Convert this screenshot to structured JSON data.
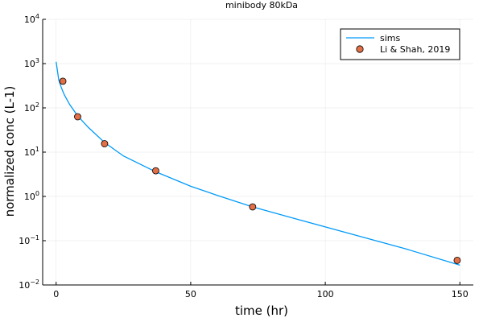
{
  "chart_data": {
    "type": "scatter",
    "title": "minibody 80kDa",
    "xlabel": "time (hr)",
    "ylabel": "normalized conc (L-1)",
    "xlim": [
      -5,
      155
    ],
    "ylim": [
      0.01,
      10000
    ],
    "yscale": "log10",
    "grid": true,
    "legend_position": "top-right",
    "x_ticks": [
      {
        "value": 0,
        "label": "0"
      },
      {
        "value": 50,
        "label": "50"
      },
      {
        "value": 100,
        "label": "100"
      },
      {
        "value": 150,
        "label": "150"
      }
    ],
    "y_ticks": [
      {
        "value": 0.01,
        "base": "10",
        "exp": "−2"
      },
      {
        "value": 0.1,
        "base": "10",
        "exp": "−1"
      },
      {
        "value": 1,
        "base": "10",
        "exp": "0"
      },
      {
        "value": 10,
        "base": "10",
        "exp": "1"
      },
      {
        "value": 100,
        "base": "10",
        "exp": "2"
      },
      {
        "value": 1000,
        "base": "10",
        "exp": "3"
      },
      {
        "value": 10000,
        "base": "10",
        "exp": "4"
      }
    ],
    "series": [
      {
        "name": "sims",
        "style": "line",
        "color": "#009af9",
        "x": [
          0,
          1,
          2,
          3,
          5,
          8,
          12,
          18,
          25,
          37,
          50,
          60,
          73,
          90,
          110,
          130,
          150
        ],
        "y": [
          1100,
          420,
          280,
          200,
          120,
          66,
          36,
          16.5,
          8.2,
          3.6,
          1.7,
          1.05,
          0.58,
          0.3,
          0.14,
          0.065,
          0.028
        ]
      },
      {
        "name": "Li & Shah, 2019",
        "style": "markers",
        "color": "#e26f46",
        "x": [
          2.5,
          8,
          18,
          37,
          73,
          149
        ],
        "y": [
          400,
          63,
          15.5,
          3.8,
          0.58,
          0.036
        ]
      }
    ]
  }
}
